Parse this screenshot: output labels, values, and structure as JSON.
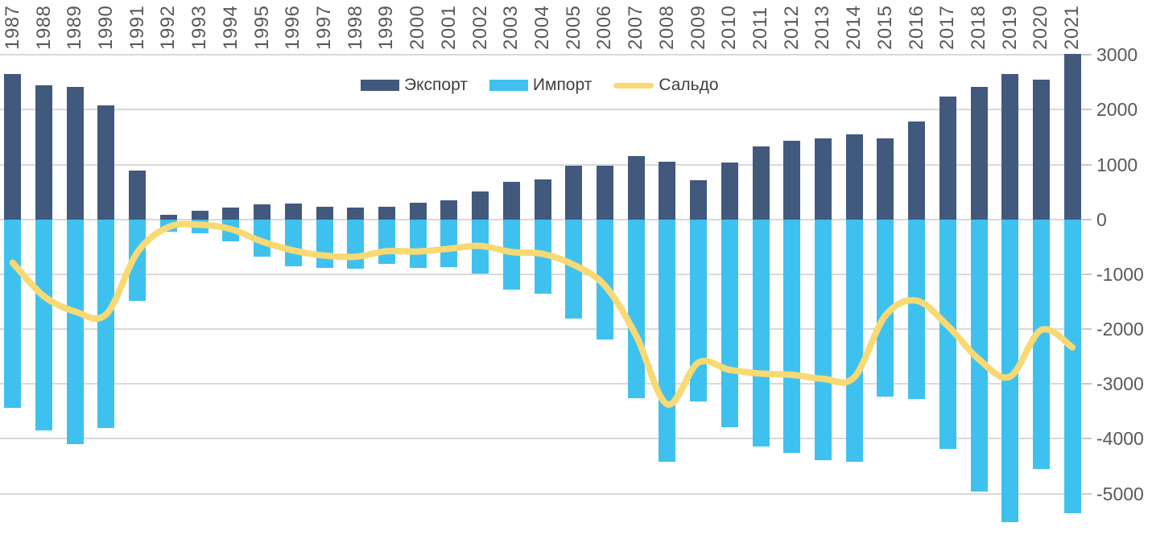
{
  "chart_data": {
    "type": "combo-bar-line",
    "title": "",
    "categories": [
      "1987",
      "1988",
      "1989",
      "1990",
      "1991",
      "1992",
      "1993",
      "1994",
      "1995",
      "1996",
      "1997",
      "1998",
      "1999",
      "2000",
      "2001",
      "2002",
      "2003",
      "2004",
      "2005",
      "2006",
      "2007",
      "2008",
      "2009",
      "2010",
      "2011",
      "2012",
      "2013",
      "2014",
      "2015",
      "2016",
      "2017",
      "2018",
      "2019",
      "2020",
      "2021"
    ],
    "series": [
      {
        "name": "Экспорт",
        "type": "bar",
        "color": "#41597C",
        "values": [
          2650,
          2450,
          2420,
          2080,
          890,
          90,
          156,
          216,
          271,
          290,
          233,
          221,
          232,
          300,
          342,
          505,
          686,
          723,
          974,
          985,
          1152,
          1057,
          710,
          1041,
          1334,
          1428,
          1479,
          1547,
          1485,
          1792,
          2243,
          2412,
          2649,
          2544,
          3023
        ]
      },
      {
        "name": "Импорт",
        "type": "bar",
        "color": "#3FC1EF",
        "values": [
          -3440,
          -3850,
          -4100,
          -3810,
          -1490,
          -230,
          -254,
          -394,
          -674,
          -856,
          -892,
          -902,
          -812,
          -885,
          -877,
          -987,
          -1280,
          -1351,
          -1802,
          -2192,
          -3268,
          -4426,
          -3321,
          -3783,
          -4145,
          -4261,
          -4386,
          -4424,
          -3239,
          -3273,
          -4183,
          -4963,
          -5515,
          -4559,
          -5357
        ]
      },
      {
        "name": "Сальдо",
        "type": "line",
        "color": "#F8D973",
        "values": [
          -790,
          -1400,
          -1680,
          -1730,
          -600,
          -140,
          -98,
          -178,
          -403,
          -566,
          -659,
          -681,
          -580,
          -585,
          -535,
          -482,
          -594,
          -628,
          -828,
          -1207,
          -2116,
          -3369,
          -2611,
          -2742,
          -2811,
          -2833,
          -2907,
          -2877,
          -1754,
          -1482,
          -1940,
          -2551,
          -2866,
          -2015,
          -2334
        ]
      }
    ],
    "y_axis": {
      "side": "right",
      "ticks": [
        3000,
        2000,
        1000,
        0,
        -1000,
        -2000,
        -3000,
        -4000,
        -5000
      ],
      "top_value": 3000,
      "bottom_value": -5753,
      "grid": true,
      "grid_color": "#D9D9D9",
      "tick_color": "#C8C8C8",
      "label_color": "#595959"
    },
    "x_axis": {
      "position": "top",
      "label_rotation_deg": -90,
      "label_color": "#595959"
    },
    "legend": {
      "position": "top-center",
      "text_color": "#404040"
    }
  }
}
